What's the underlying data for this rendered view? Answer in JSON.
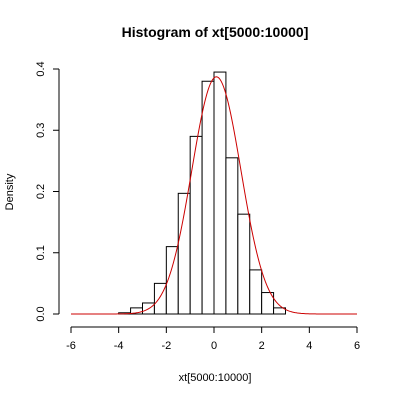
{
  "chart_data": {
    "type": "bar",
    "title": "Histogram of xt[5000:10000]",
    "xlabel": "xt[5000:10000]",
    "ylabel": "Density",
    "xlim": [
      -6,
      6
    ],
    "ylim": [
      0,
      0.4
    ],
    "x_ticks": [
      -6,
      -4,
      -2,
      0,
      2,
      4,
      6
    ],
    "y_ticks": [
      0.0,
      0.1,
      0.2,
      0.3,
      0.4
    ],
    "y_tick_labels": [
      "0.0",
      "0.1",
      "0.2",
      "0.3",
      "0.4"
    ],
    "bin_width": 0.5,
    "bins": [
      {
        "x0": -4.0,
        "x1": -3.5,
        "density": 0.002
      },
      {
        "x0": -3.5,
        "x1": -3.0,
        "density": 0.01
      },
      {
        "x0": -3.0,
        "x1": -2.5,
        "density": 0.018
      },
      {
        "x0": -2.5,
        "x1": -2.0,
        "density": 0.05
      },
      {
        "x0": -2.0,
        "x1": -1.5,
        "density": 0.11
      },
      {
        "x0": -1.5,
        "x1": -1.0,
        "density": 0.197
      },
      {
        "x0": -1.0,
        "x1": -0.5,
        "density": 0.29
      },
      {
        "x0": -0.5,
        "x1": 0.0,
        "density": 0.38
      },
      {
        "x0": 0.0,
        "x1": 0.5,
        "density": 0.395
      },
      {
        "x0": 0.5,
        "x1": 1.0,
        "density": 0.255
      },
      {
        "x0": 1.0,
        "x1": 1.5,
        "density": 0.163
      },
      {
        "x0": 1.5,
        "x1": 2.0,
        "density": 0.072
      },
      {
        "x0": 2.0,
        "x1": 2.5,
        "density": 0.035
      },
      {
        "x0": 2.5,
        "x1": 3.0,
        "density": 0.01
      }
    ],
    "density_curve": {
      "color": "#cc0000",
      "mean": 0.1,
      "sd": 1.03
    },
    "grid": false,
    "bar_fill": "#ffffff",
    "bar_stroke": "#000000"
  }
}
